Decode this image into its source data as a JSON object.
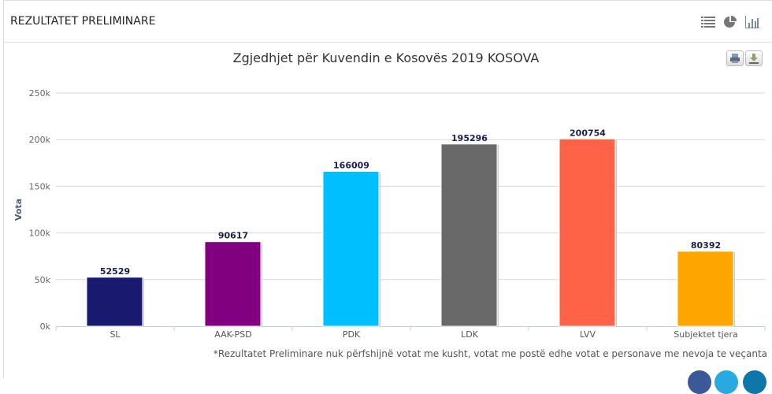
{
  "header": {
    "title": "REZULTATET PRELIMINARE",
    "icons": [
      "list-icon",
      "pie-chart-icon",
      "bar-chart-icon"
    ]
  },
  "toolbar": {
    "icons": [
      "print-icon",
      "download-icon"
    ]
  },
  "note": "*Rezultatet Preliminare nuk përfshijnë votat me kusht, votat me postë edhe votat e personave me nevoja te veçanta",
  "social": [
    "facebook-icon",
    "twitter-icon",
    "linkedin-icon"
  ],
  "chart_data": {
    "type": "bar",
    "title": "Zgjedhjet për Kuvendin e Kosovës 2019 KOSOVA",
    "ylabel": "Vota",
    "xlabel": "",
    "categories": [
      "SL",
      "AAK-PSD",
      "PDK",
      "LDK",
      "LVV",
      "Subjektet tjera"
    ],
    "values": [
      52529,
      90617,
      166009,
      195296,
      200754,
      80392
    ],
    "colors": [
      "#191970",
      "#800080",
      "#00bfff",
      "#696969",
      "#ff6347",
      "#ffa500"
    ],
    "ylim": [
      0,
      250000
    ],
    "yticks": [
      0,
      50000,
      100000,
      150000,
      200000,
      250000
    ],
    "ytick_labels": [
      "0k",
      "50k",
      "100k",
      "150k",
      "200k",
      "250k"
    ],
    "grid": true,
    "legend": "none"
  }
}
